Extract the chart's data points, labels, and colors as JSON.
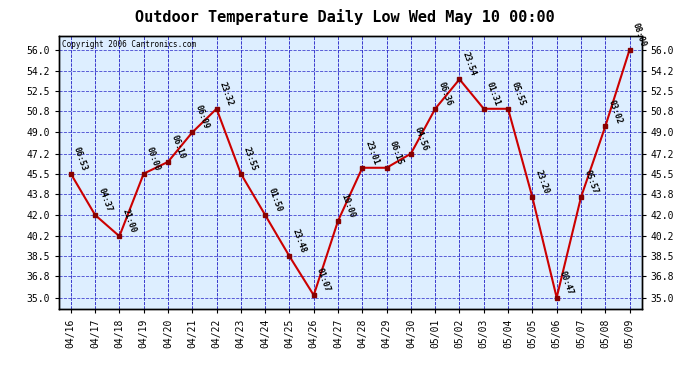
{
  "title": "Outdoor Temperature Daily Low Wed May 10 00:00",
  "copyright": "Copyright 2006 Cantronics.com",
  "background_color": "#ffffff",
  "plot_bg_color": "#ddeeff",
  "grid_color": "#3333cc",
  "line_color": "#cc0000",
  "marker_color": "#880000",
  "text_color": "#000000",
  "dates": [
    "04/16",
    "04/17",
    "04/18",
    "04/19",
    "04/20",
    "04/21",
    "04/22",
    "04/23",
    "04/24",
    "04/25",
    "04/26",
    "04/27",
    "04/28",
    "04/29",
    "04/30",
    "05/01",
    "05/02",
    "05/03",
    "05/04",
    "05/05",
    "05/06",
    "05/07",
    "05/08",
    "05/09"
  ],
  "values": [
    45.5,
    42.0,
    40.2,
    45.5,
    46.5,
    49.0,
    51.0,
    45.5,
    42.0,
    38.5,
    35.2,
    41.5,
    46.0,
    46.0,
    47.2,
    51.0,
    53.5,
    51.0,
    51.0,
    43.5,
    35.0,
    43.5,
    49.5,
    56.0
  ],
  "time_labels": [
    "06:53",
    "04:37",
    "21:00",
    "00:00",
    "06:10",
    "06:09",
    "23:32",
    "23:55",
    "01:50",
    "23:48",
    "01:07",
    "10:00",
    "23:01",
    "06:15",
    "04:56",
    "06:36",
    "23:54",
    "01:31",
    "05:55",
    "23:20",
    "00:47",
    "05:57",
    "03:02",
    "08:00"
  ],
  "ylim": [
    34.0,
    57.2
  ],
  "yticks": [
    35.0,
    36.8,
    38.5,
    40.2,
    42.0,
    43.8,
    45.5,
    47.2,
    49.0,
    50.8,
    52.5,
    54.2,
    56.0
  ],
  "title_fontsize": 11,
  "tick_fontsize": 7,
  "label_fontsize": 6,
  "label_rotation": -70,
  "figwidth": 6.9,
  "figheight": 3.75,
  "dpi": 100
}
